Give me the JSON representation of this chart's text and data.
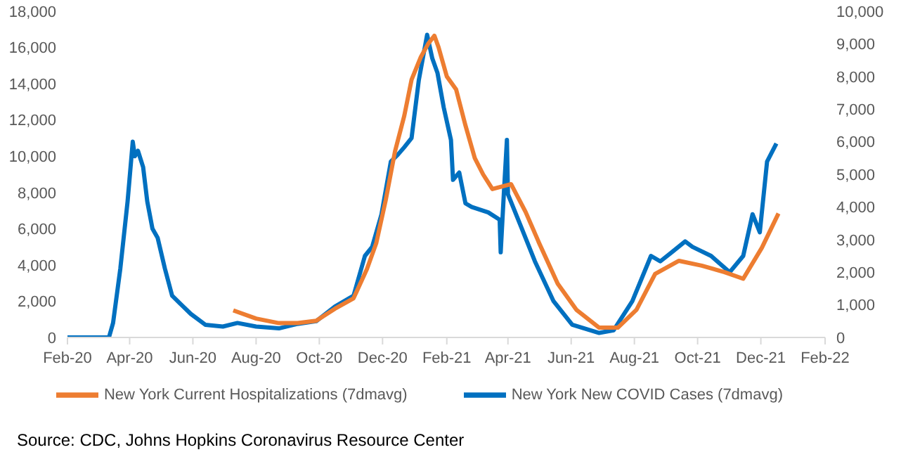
{
  "chart_data": {
    "type": "line",
    "annotations": [
      "Source: CDC, Johns Hopkins Coronavirus Resource Center"
    ],
    "xlim": [
      "2020-02-01",
      "2022-02-01"
    ],
    "xticks": [
      {
        "value": "2020-02-01",
        "label": "Feb-20"
      },
      {
        "value": "2020-04-01",
        "label": "Apr-20"
      },
      {
        "value": "2020-06-01",
        "label": "Jun-20"
      },
      {
        "value": "2020-08-01",
        "label": "Aug-20"
      },
      {
        "value": "2020-10-01",
        "label": "Oct-20"
      },
      {
        "value": "2020-12-01",
        "label": "Dec-20"
      },
      {
        "value": "2021-02-01",
        "label": "Feb-21"
      },
      {
        "value": "2021-04-01",
        "label": "Apr-21"
      },
      {
        "value": "2021-06-01",
        "label": "Jun-21"
      },
      {
        "value": "2021-08-01",
        "label": "Aug-21"
      },
      {
        "value": "2021-10-01",
        "label": "Oct-21"
      },
      {
        "value": "2021-12-01",
        "label": "Dec-21"
      },
      {
        "value": "2022-02-01",
        "label": "Feb-22"
      }
    ],
    "ylim": [
      0,
      18000
    ],
    "yticks": [
      {
        "value": 0,
        "label": "0"
      },
      {
        "value": 2000,
        "label": "2,000"
      },
      {
        "value": 4000,
        "label": "4,000"
      },
      {
        "value": 6000,
        "label": "6,000"
      },
      {
        "value": 8000,
        "label": "8,000"
      },
      {
        "value": 10000,
        "label": "10,000"
      },
      {
        "value": 12000,
        "label": "12,000"
      },
      {
        "value": 14000,
        "label": "14,000"
      },
      {
        "value": 16000,
        "label": "16,000"
      },
      {
        "value": 18000,
        "label": "18,000"
      }
    ],
    "y2lim": [
      0,
      10000
    ],
    "y2ticks": [
      {
        "value": 0,
        "label": "0"
      },
      {
        "value": 1000,
        "label": "1,000"
      },
      {
        "value": 2000,
        "label": "2,000"
      },
      {
        "value": 3000,
        "label": "3,000"
      },
      {
        "value": 4000,
        "label": "4,000"
      },
      {
        "value": 5000,
        "label": "5,000"
      },
      {
        "value": 6000,
        "label": "6,000"
      },
      {
        "value": 7000,
        "label": "7,000"
      },
      {
        "value": 8000,
        "label": "8,000"
      },
      {
        "value": 9000,
        "label": "9,000"
      },
      {
        "value": 10000,
        "label": "10,000"
      }
    ],
    "grid": false,
    "legend": "bottom",
    "marker": "none",
    "line_style": "solid",
    "series": [
      {
        "name": "New York New COVID Cases (7dmavg)",
        "color": "#0070c0",
        "x": [
          "2020-02-01",
          "2020-03-12",
          "2020-03-16",
          "2020-03-23",
          "2020-03-30",
          "2020-04-04",
          "2020-04-06",
          "2020-04-09",
          "2020-04-14",
          "2020-04-18",
          "2020-04-23",
          "2020-04-28",
          "2020-05-05",
          "2020-05-12",
          "2020-05-21",
          "2020-05-30",
          "2020-06-13",
          "2020-06-30",
          "2020-07-14",
          "2020-08-01",
          "2020-08-23",
          "2020-09-10",
          "2020-09-28",
          "2020-10-16",
          "2020-11-03",
          "2020-11-14",
          "2020-11-21",
          "2020-11-30",
          "2020-12-09",
          "2020-12-16",
          "2020-12-22",
          "2020-12-29",
          "2021-01-05",
          "2021-01-13",
          "2021-01-18",
          "2021-01-23",
          "2021-01-29",
          "2021-02-05",
          "2021-02-07",
          "2021-02-13",
          "2021-02-19",
          "2021-02-25",
          "2021-03-13",
          "2021-03-24",
          "2021-03-25",
          "2021-03-28",
          "2021-03-31",
          "2021-04-01",
          "2021-04-13",
          "2021-04-27",
          "2021-05-15",
          "2021-06-02",
          "2021-06-28",
          "2021-07-12",
          "2021-07-30",
          "2021-08-17",
          "2021-08-26",
          "2021-09-06",
          "2021-09-19",
          "2021-09-26",
          "2021-10-14",
          "2021-11-01",
          "2021-11-14",
          "2021-11-23",
          "2021-11-30",
          "2021-12-07",
          "2021-12-16"
        ],
        "values": [
          0,
          0,
          800,
          3800,
          7500,
          10800,
          10000,
          10300,
          9400,
          7500,
          6000,
          5500,
          3800,
          2300,
          1800,
          1300,
          700,
          600,
          800,
          600,
          500,
          750,
          900,
          1700,
          2300,
          4500,
          5000,
          6800,
          9700,
          10100,
          10500,
          11000,
          14200,
          16700,
          15400,
          14600,
          12700,
          10900,
          8700,
          9100,
          7400,
          7200,
          6900,
          6500,
          4700,
          7900,
          10900,
          7900,
          6200,
          4200,
          2000,
          700,
          250,
          400,
          2000,
          4500,
          4200,
          4700,
          5300,
          5000,
          4500,
          3600,
          4500,
          6800,
          5800,
          9700,
          10700
        ]
      },
      {
        "name": "New York Current Hospitalizations (7dmavg)",
        "color": "#ed7d31",
        "axis": "y2",
        "x": [
          "2020-07-10",
          "2020-08-01",
          "2020-08-23",
          "2020-09-10",
          "2020-09-28",
          "2020-10-16",
          "2020-11-03",
          "2020-11-16",
          "2020-11-25",
          "2020-12-04",
          "2020-12-13",
          "2020-12-22",
          "2020-12-29",
          "2021-01-07",
          "2021-01-14",
          "2021-01-20",
          "2021-01-24",
          "2021-02-01",
          "2021-02-10",
          "2021-02-19",
          "2021-02-28",
          "2021-03-08",
          "2021-03-17",
          "2021-04-04",
          "2021-04-18",
          "2021-05-01",
          "2021-05-19",
          "2021-06-06",
          "2021-06-28",
          "2021-07-16",
          "2021-08-03",
          "2021-08-21",
          "2021-09-13",
          "2021-10-05",
          "2021-10-27",
          "2021-11-14",
          "2021-12-02",
          "2021-12-18"
        ],
        "values": [
          830,
          580,
          440,
          440,
          510,
          880,
          1200,
          2100,
          2900,
          4200,
          5700,
          6800,
          7900,
          8600,
          9000,
          9250,
          8900,
          8000,
          7600,
          6500,
          5500,
          5000,
          4550,
          4700,
          3850,
          2900,
          1650,
          850,
          300,
          300,
          850,
          1950,
          2350,
          2200,
          2000,
          1800,
          2750,
          3800
        ]
      }
    ]
  }
}
